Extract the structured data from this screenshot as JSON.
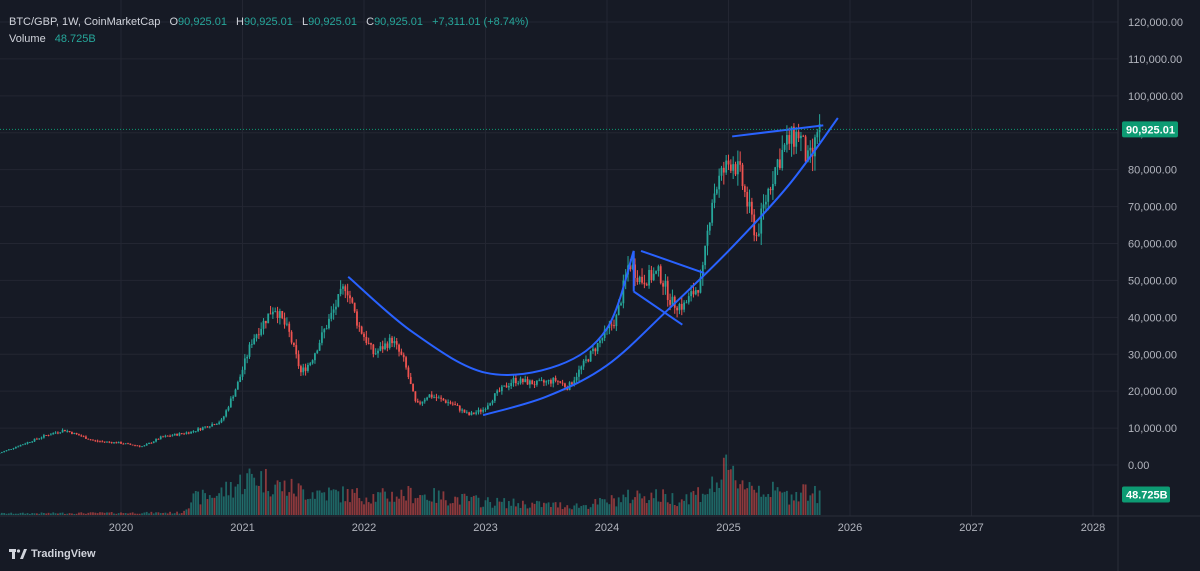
{
  "legend": {
    "symbol": "BTC/GBP, 1W, CoinMarketCap",
    "open_label": "O",
    "open": "90,925.01",
    "high_label": "H",
    "high": "90,925.01",
    "low_label": "L",
    "low": "90,925.01",
    "close_label": "C",
    "close": "90,925.01",
    "change": "+7,311.01 (+8.74%)",
    "volume_label": "Volume",
    "volume": "48.725B"
  },
  "branding": {
    "name": "TradingView",
    "icon": "tradingview-logo-icon"
  },
  "colors": {
    "background": "#161a25",
    "up": "#26a69a",
    "down": "#ef5350",
    "drawing": "#2962ff",
    "price_tag": "#0d9b73",
    "grid": "#232632"
  },
  "price_axis": {
    "ticks": [
      "120,000.00",
      "110,000.00",
      "100,000.00",
      "90,000.00",
      "80,000.00",
      "70,000.00",
      "60,000.00",
      "50,000.00",
      "40,000.00",
      "30,000.00",
      "20,000.00",
      "10,000.00",
      "0.00"
    ],
    "last_price_tag": "90,925.01",
    "volume_tag": "48.725B"
  },
  "time_axis": {
    "ticks": [
      "2020",
      "2021",
      "2022",
      "2023",
      "2024",
      "2025",
      "2026",
      "2027",
      "2028"
    ]
  },
  "chart_data": {
    "type": "candlestick",
    "title": "BTC/GBP, 1W, CoinMarketCap",
    "x_unit": "year",
    "ylim": [
      0,
      120000
    ],
    "grid": true,
    "last_price": 90925.01,
    "price_path": [
      [
        2019.0,
        3000
      ],
      [
        2019.4,
        8000
      ],
      [
        2019.55,
        9500
      ],
      [
        2019.8,
        6500
      ],
      [
        2020.0,
        6000
      ],
      [
        2020.2,
        5000
      ],
      [
        2020.35,
        7500
      ],
      [
        2020.6,
        9000
      ],
      [
        2020.85,
        12000
      ],
      [
        2020.98,
        22000
      ],
      [
        2021.1,
        34000
      ],
      [
        2021.28,
        43000
      ],
      [
        2021.4,
        36000
      ],
      [
        2021.5,
        25000
      ],
      [
        2021.58,
        28000
      ],
      [
        2021.7,
        37000
      ],
      [
        2021.87,
        49000
      ],
      [
        2021.97,
        38000
      ],
      [
        2022.1,
        30000
      ],
      [
        2022.25,
        34000
      ],
      [
        2022.35,
        28000
      ],
      [
        2022.45,
        16000
      ],
      [
        2022.55,
        19000
      ],
      [
        2022.75,
        16500
      ],
      [
        2022.88,
        13500
      ],
      [
        2023.0,
        15000
      ],
      [
        2023.1,
        19000
      ],
      [
        2023.25,
        23000
      ],
      [
        2023.45,
        22000
      ],
      [
        2023.6,
        23000
      ],
      [
        2023.7,
        21000
      ],
      [
        2023.8,
        26000
      ],
      [
        2023.95,
        33000
      ],
      [
        2024.1,
        40000
      ],
      [
        2024.2,
        55000
      ],
      [
        2024.3,
        50000
      ],
      [
        2024.45,
        52000
      ],
      [
        2024.55,
        44000
      ],
      [
        2024.65,
        43000
      ],
      [
        2024.8,
        50000
      ],
      [
        2024.88,
        72000
      ],
      [
        2024.95,
        78000
      ],
      [
        2025.05,
        83000
      ],
      [
        2025.12,
        78000
      ],
      [
        2025.18,
        70000
      ],
      [
        2025.25,
        62000
      ],
      [
        2025.35,
        75000
      ],
      [
        2025.42,
        82000
      ],
      [
        2025.5,
        87000
      ],
      [
        2025.6,
        90000
      ],
      [
        2025.67,
        82000
      ],
      [
        2025.72,
        84000
      ],
      [
        2025.75,
        90925
      ]
    ],
    "volume_ylim": [
      0,
      48.725
    ],
    "volume_unit": "B",
    "volume_path": [
      [
        2019.0,
        0.6
      ],
      [
        2020.0,
        0.8
      ],
      [
        2020.5,
        0.9
      ],
      [
        2020.58,
        6
      ],
      [
        2020.8,
        8
      ],
      [
        2021.1,
        15
      ],
      [
        2021.3,
        11
      ],
      [
        2021.5,
        9
      ],
      [
        2021.8,
        8
      ],
      [
        2022.1,
        7
      ],
      [
        2022.4,
        8
      ],
      [
        2022.8,
        6
      ],
      [
        2023.0,
        5
      ],
      [
        2023.4,
        4
      ],
      [
        2023.8,
        3.5
      ],
      [
        2024.1,
        6
      ],
      [
        2024.3,
        8
      ],
      [
        2024.6,
        6
      ],
      [
        2024.85,
        10
      ],
      [
        2024.98,
        16
      ],
      [
        2025.2,
        11
      ],
      [
        2025.5,
        7
      ],
      [
        2025.6,
        10
      ],
      [
        2025.75,
        7
      ]
    ],
    "drawings": [
      {
        "name": "cup-curve",
        "points": [
          [
            2021.87,
            51000
          ],
          [
            2022.4,
            36000
          ],
          [
            2023.0,
            25000
          ],
          [
            2023.6,
            27000
          ],
          [
            2024.0,
            37000
          ],
          [
            2024.22,
            58000
          ]
        ]
      },
      {
        "name": "support-curve",
        "points": [
          [
            2022.98,
            13500
          ],
          [
            2023.5,
            18500
          ],
          [
            2024.0,
            27000
          ],
          [
            2024.5,
            42000
          ],
          [
            2025.0,
            58000
          ],
          [
            2025.5,
            76000
          ],
          [
            2025.9,
            94000
          ]
        ]
      },
      {
        "name": "flag-upper",
        "points": [
          [
            2024.28,
            58000
          ],
          [
            2024.8,
            52000
          ]
        ]
      },
      {
        "name": "flag-lower",
        "points": [
          [
            2024.22,
            47000
          ],
          [
            2024.62,
            38000
          ]
        ]
      },
      {
        "name": "flag-side",
        "points": [
          [
            2024.22,
            58000
          ],
          [
            2024.22,
            47000
          ]
        ]
      },
      {
        "name": "top-line",
        "points": [
          [
            2025.03,
            89000
          ],
          [
            2025.78,
            92000
          ]
        ]
      }
    ]
  }
}
